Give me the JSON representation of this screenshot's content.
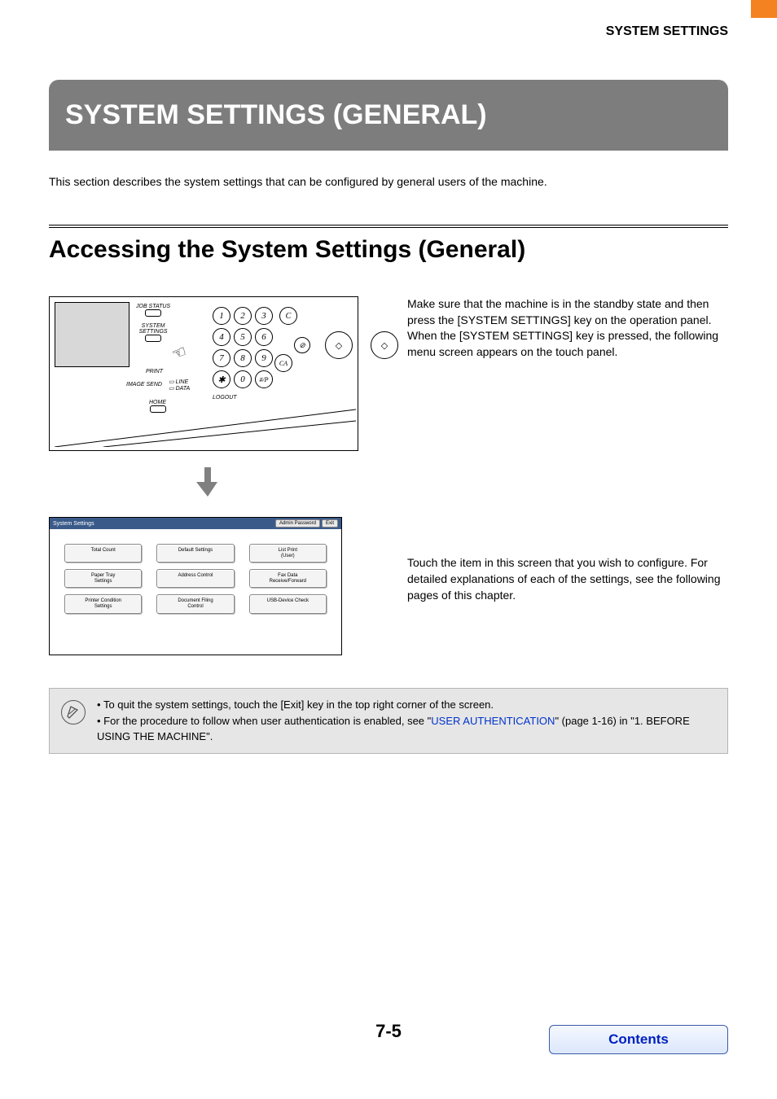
{
  "header": {
    "section": "SYSTEM SETTINGS"
  },
  "title_banner": "SYSTEM SETTINGS (GENERAL)",
  "intro": "This section describes the system settings that can be configured by general users of the machine.",
  "subtitle": "Accessing the System Settings (General)",
  "panel_labels": {
    "job_status": "JOB STATUS",
    "system_settings_l1": "SYSTEM",
    "system_settings_l2": "SETTINGS",
    "print": "PRINT",
    "image_send": "IMAGE SEND",
    "line": "LINE",
    "data": "DATA",
    "home": "HOME",
    "logout": "LOGOUT"
  },
  "keypad": [
    "1",
    "2",
    "3",
    "4",
    "5",
    "6",
    "7",
    "8",
    "9",
    "✱",
    "0",
    "#/P"
  ],
  "extra": {
    "c": "C",
    "ca": "CA"
  },
  "right1": {
    "p1": "Make sure that the machine is in the standby state and then press the [SYSTEM SETTINGS] key on the operation panel.",
    "p2": "When the [SYSTEM SETTINGS] key is pressed, the following menu screen appears on the touch panel."
  },
  "touch": {
    "title": "System Settings",
    "admin": "Admin Password",
    "exit": "Exit",
    "cells": [
      "Total Count",
      "Default Settings",
      "List Print\n(User)",
      "Paper Tray\nSettings",
      "Address Control",
      "Fax Data\nReceive/Forward",
      "Printer Condition\nSettings",
      "Document Filing\nControl",
      "USB-Device Check"
    ]
  },
  "right2": {
    "p1": "Touch the item in this screen that you wish to configure. For detailed explanations of each of the settings, see the following pages of this chapter."
  },
  "note": {
    "b1": "To quit the system settings, touch the [Exit] key in the top right corner of the screen.",
    "b2a": "For the procedure to follow when user authentication is enabled, see \"",
    "b2link": "USER AUTHENTICATION",
    "b2b": "\" (page 1-16) in \"1. BEFORE USING THE MACHINE\"."
  },
  "page_number": "7-5",
  "contents": "Contents",
  "colors": {
    "orange": "#f58220",
    "banner_gray": "#7d7d7d",
    "note_bg": "#e6e6e6",
    "link": "#0033cc",
    "contents_text": "#0020c0",
    "touch_bar": "#3a5a8a"
  }
}
